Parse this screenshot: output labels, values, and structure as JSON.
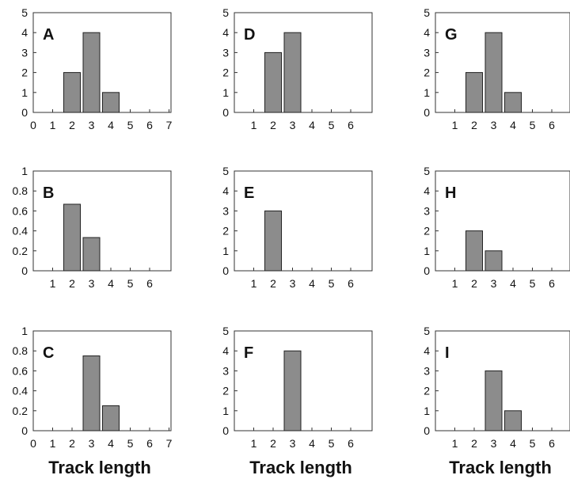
{
  "figure": {
    "xlabel": "Track length"
  },
  "style": {
    "bar_fill": "#8c8c8c",
    "bar_stroke": "#222222",
    "axis_color": "#333333"
  },
  "chart_data": [
    {
      "panel": "A",
      "type": "bar",
      "x": [
        2,
        3,
        4
      ],
      "values": [
        2,
        4,
        1
      ],
      "xlim": [
        0,
        7
      ],
      "xticks": [
        "0",
        "1",
        "2",
        "3",
        "4",
        "5",
        "6",
        "7"
      ],
      "ylim": [
        0,
        5
      ],
      "yticks": [
        "0",
        "1",
        "2",
        "3",
        "4",
        "5"
      ],
      "xlabel": ""
    },
    {
      "panel": "B",
      "type": "bar",
      "x": [
        2,
        3
      ],
      "values": [
        0.667,
        0.333
      ],
      "xlim": [
        0,
        7
      ],
      "xticks": [
        "1",
        "2",
        "3",
        "4",
        "5",
        "6"
      ],
      "ylim": [
        0,
        1
      ],
      "yticks": [
        "0",
        "0.2",
        "0.4",
        "0.6",
        "0.8",
        "1"
      ],
      "xlabel": ""
    },
    {
      "panel": "C",
      "type": "bar",
      "x": [
        3,
        4
      ],
      "values": [
        0.75,
        0.25
      ],
      "xlim": [
        0,
        7
      ],
      "xticks": [
        "0",
        "1",
        "2",
        "3",
        "4",
        "5",
        "6",
        "7"
      ],
      "ylim": [
        0,
        1
      ],
      "yticks": [
        "0",
        "0.2",
        "0.4",
        "0.6",
        "0.8",
        "1"
      ],
      "xlabel": "Track length"
    },
    {
      "panel": "D",
      "type": "bar",
      "x": [
        2,
        3
      ],
      "values": [
        3,
        4
      ],
      "xlim": [
        0,
        7
      ],
      "xticks": [
        "1",
        "2",
        "3",
        "4",
        "5",
        "6"
      ],
      "ylim": [
        0,
        5
      ],
      "yticks": [
        "0",
        "1",
        "2",
        "3",
        "4",
        "5"
      ],
      "xlabel": ""
    },
    {
      "panel": "E",
      "type": "bar",
      "x": [
        2
      ],
      "values": [
        3
      ],
      "xlim": [
        0,
        7
      ],
      "xticks": [
        "1",
        "2",
        "3",
        "4",
        "5",
        "6"
      ],
      "ylim": [
        0,
        5
      ],
      "yticks": [
        "0",
        "1",
        "2",
        "3",
        "4",
        "5"
      ],
      "xlabel": ""
    },
    {
      "panel": "F",
      "type": "bar",
      "x": [
        3
      ],
      "values": [
        4
      ],
      "xlim": [
        0,
        7
      ],
      "xticks": [
        "1",
        "2",
        "3",
        "4",
        "5",
        "6"
      ],
      "ylim": [
        0,
        5
      ],
      "yticks": [
        "0",
        "1",
        "2",
        "3",
        "4",
        "5"
      ],
      "xlabel": "Track length"
    },
    {
      "panel": "G",
      "type": "bar",
      "x": [
        2,
        3,
        4
      ],
      "values": [
        2,
        4,
        1
      ],
      "xlim": [
        0,
        7
      ],
      "xticks": [
        "1",
        "2",
        "3",
        "4",
        "5",
        "6"
      ],
      "ylim": [
        0,
        5
      ],
      "yticks": [
        "0",
        "1",
        "2",
        "3",
        "4",
        "5"
      ],
      "xlabel": ""
    },
    {
      "panel": "H",
      "type": "bar",
      "x": [
        2,
        3
      ],
      "values": [
        2,
        1
      ],
      "xlim": [
        0,
        7
      ],
      "xticks": [
        "1",
        "2",
        "3",
        "4",
        "5",
        "6"
      ],
      "ylim": [
        0,
        5
      ],
      "yticks": [
        "0",
        "1",
        "2",
        "3",
        "4",
        "5"
      ],
      "xlabel": ""
    },
    {
      "panel": "I",
      "type": "bar",
      "x": [
        3,
        4
      ],
      "values": [
        3,
        1
      ],
      "xlim": [
        0,
        7
      ],
      "xticks": [
        "1",
        "2",
        "3",
        "4",
        "5",
        "6"
      ],
      "ylim": [
        0,
        5
      ],
      "yticks": [
        "0",
        "1",
        "2",
        "3",
        "4",
        "5"
      ],
      "xlabel": "Track length"
    }
  ]
}
